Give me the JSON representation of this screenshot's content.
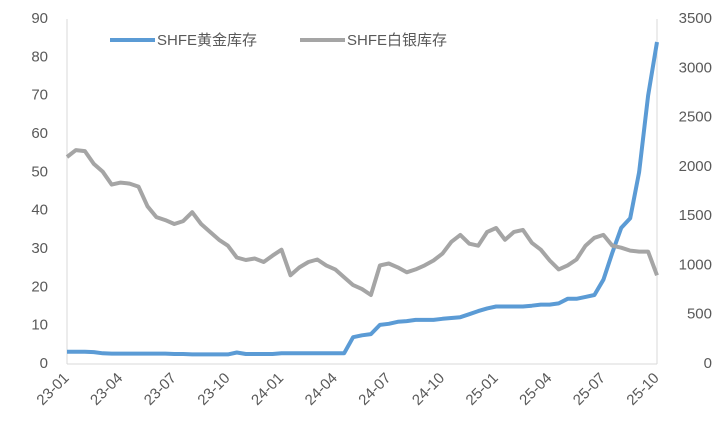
{
  "chart_data": {
    "type": "line",
    "categories": [
      "23-01",
      null,
      null,
      null,
      null,
      null,
      "23-04",
      null,
      null,
      null,
      null,
      null,
      "23-07",
      null,
      null,
      null,
      null,
      null,
      "23-10",
      null,
      null,
      null,
      null,
      null,
      "24-01",
      null,
      null,
      null,
      null,
      null,
      "24-04",
      null,
      null,
      null,
      null,
      null,
      "24-07",
      null,
      null,
      null,
      null,
      null,
      "24-10",
      null,
      null,
      null,
      null,
      null,
      "25-01",
      null,
      null,
      null,
      null,
      null,
      "25-04",
      null,
      null,
      null,
      null,
      null,
      "25-07",
      null,
      null,
      null,
      null,
      null,
      "25-10"
    ],
    "series": [
      {
        "name": "SHFE黄金库存",
        "color": "#5b9bd5",
        "values": [
          3.2,
          3.2,
          3.2,
          3.1,
          2.8,
          2.7,
          2.7,
          2.7,
          2.7,
          2.7,
          2.7,
          2.7,
          2.6,
          2.6,
          2.5,
          2.5,
          2.5,
          2.5,
          2.5,
          3.0,
          2.6,
          2.6,
          2.6,
          2.6,
          2.8,
          2.8,
          2.8,
          2.8,
          2.8,
          2.8,
          2.8,
          2.8,
          7.0,
          7.5,
          7.8,
          10.2,
          10.5,
          11.0,
          11.2,
          11.5,
          11.5,
          11.5,
          11.8,
          12.0,
          12.2,
          13.0,
          13.8,
          14.5,
          15.0,
          15.0,
          15.0,
          15.0,
          15.2,
          15.5,
          15.5,
          15.8,
          17.0,
          17.0,
          17.5,
          18.0,
          22,
          29,
          35.5,
          38,
          50,
          70,
          84
        ]
      },
      {
        "name": "SHFE白银库存",
        "color": "#a5a5a5",
        "axis": "y2",
        "values": [
          2100,
          2170,
          2160,
          2030,
          1950,
          1820,
          1840,
          1830,
          1800,
          1600,
          1490,
          1460,
          1420,
          1450,
          1540,
          1420,
          1340,
          1260,
          1200,
          1080,
          1055,
          1070,
          1035,
          1100,
          1160,
          900,
          980,
          1035,
          1060,
          1000,
          960,
          880,
          800,
          760,
          700,
          1000,
          1020,
          980,
          930,
          960,
          1000,
          1050,
          1120,
          1240,
          1310,
          1220,
          1200,
          1340,
          1380,
          1260,
          1340,
          1360,
          1230,
          1160,
          1050,
          960,
          1000,
          1060,
          1200,
          1280,
          1310,
          1200,
          1180,
          1150,
          1140,
          1140,
          900
        ]
      }
    ],
    "ylim": [
      0,
      90
    ],
    "yticks": [
      0,
      10,
      20,
      30,
      40,
      50,
      60,
      70,
      80,
      90
    ],
    "y2lim": [
      0,
      3500
    ],
    "y2ticks": [
      0,
      500,
      1000,
      1500,
      2000,
      2500,
      3000,
      3500
    ],
    "grid": false
  }
}
